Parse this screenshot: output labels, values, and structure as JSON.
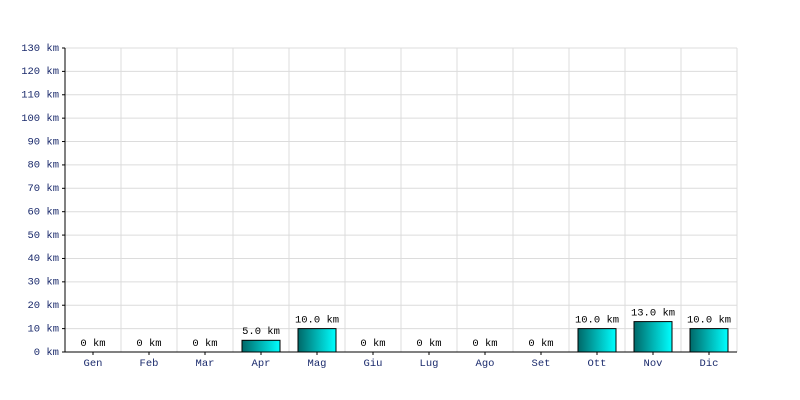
{
  "chart_data": {
    "type": "bar",
    "categories": [
      "Gen",
      "Feb",
      "Mar",
      "Apr",
      "Mag",
      "Giu",
      "Lug",
      "Ago",
      "Set",
      "Ott",
      "Nov",
      "Dic"
    ],
    "values": [
      0,
      0,
      0,
      5,
      10,
      0,
      0,
      0,
      0,
      10,
      13,
      10
    ],
    "value_labels": [
      "0 km",
      "0 km",
      "0 km",
      "5.0 km",
      "10.0 km",
      "0 km",
      "0 km",
      "0 km",
      "0 km",
      "10.0 km",
      "13.0 km",
      "10.0 km"
    ],
    "color": "#00c8c8",
    "ylim": [
      0,
      130
    ],
    "yticks": [
      {
        "value": 0,
        "label": "0 km"
      },
      {
        "value": 10,
        "label": "10 km"
      },
      {
        "value": 20,
        "label": "20 km"
      },
      {
        "value": 30,
        "label": "30 km"
      },
      {
        "value": 40,
        "label": "40 km"
      },
      {
        "value": 50,
        "label": "50 km"
      },
      {
        "value": 60,
        "label": "60 km"
      },
      {
        "value": 70,
        "label": "70 km"
      },
      {
        "value": 80,
        "label": "80 km"
      },
      {
        "value": 90,
        "label": "90 km"
      },
      {
        "value": 100,
        "label": "100 km"
      },
      {
        "value": 110,
        "label": "110 km"
      },
      {
        "value": 120,
        "label": "120 km"
      },
      {
        "value": 130,
        "label": "130 km"
      }
    ],
    "grid": true
  }
}
